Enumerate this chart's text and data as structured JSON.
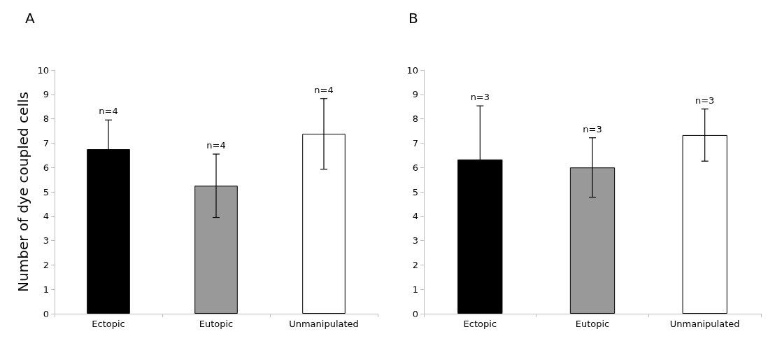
{
  "chart_data": [
    {
      "type": "bar",
      "ylabel": "Number of dye coupled cells",
      "categories": [
        "Ectopic",
        "Eutopic",
        "Unmanipulated"
      ],
      "values": [
        6.75,
        5.25,
        7.38
      ],
      "colors": [
        "#000000",
        "#999999",
        "#ffffff"
      ],
      "errors": [
        1.2,
        1.3,
        1.45
      ],
      "ylim": [
        0,
        10
      ],
      "yticks": [
        0,
        1,
        2,
        3,
        4,
        5,
        6,
        7,
        8,
        9,
        10
      ],
      "grid": false,
      "annotations": [
        "A",
        {
          "text": "n=4",
          "x": "Ectopic",
          "y": 7.95
        },
        {
          "text": "n=4",
          "x": "Eutopic",
          "y": 6.55
        },
        {
          "text": "n=4",
          "x": "Unmanipulated",
          "y": 8.83
        }
      ]
    },
    {
      "type": "bar",
      "categories": [
        "Ectopic",
        "Eutopic",
        "Unmanipulated"
      ],
      "values": [
        6.33,
        6.0,
        7.33
      ],
      "colors": [
        "#000000",
        "#999999",
        "#ffffff"
      ],
      "errors": [
        2.2,
        1.22,
        1.07
      ],
      "ylim": [
        0,
        10
      ],
      "yticks": [
        0,
        1,
        2,
        3,
        4,
        5,
        6,
        7,
        8,
        9,
        10
      ],
      "grid": false,
      "annotations": [
        "B",
        {
          "text": "n=3",
          "x": "Ectopic",
          "y": 8.53
        },
        {
          "text": "n=3",
          "x": "Eutopic",
          "y": 7.22
        },
        {
          "text": "n=3",
          "x": "Unmanipulated",
          "y": 8.4
        }
      ]
    }
  ]
}
